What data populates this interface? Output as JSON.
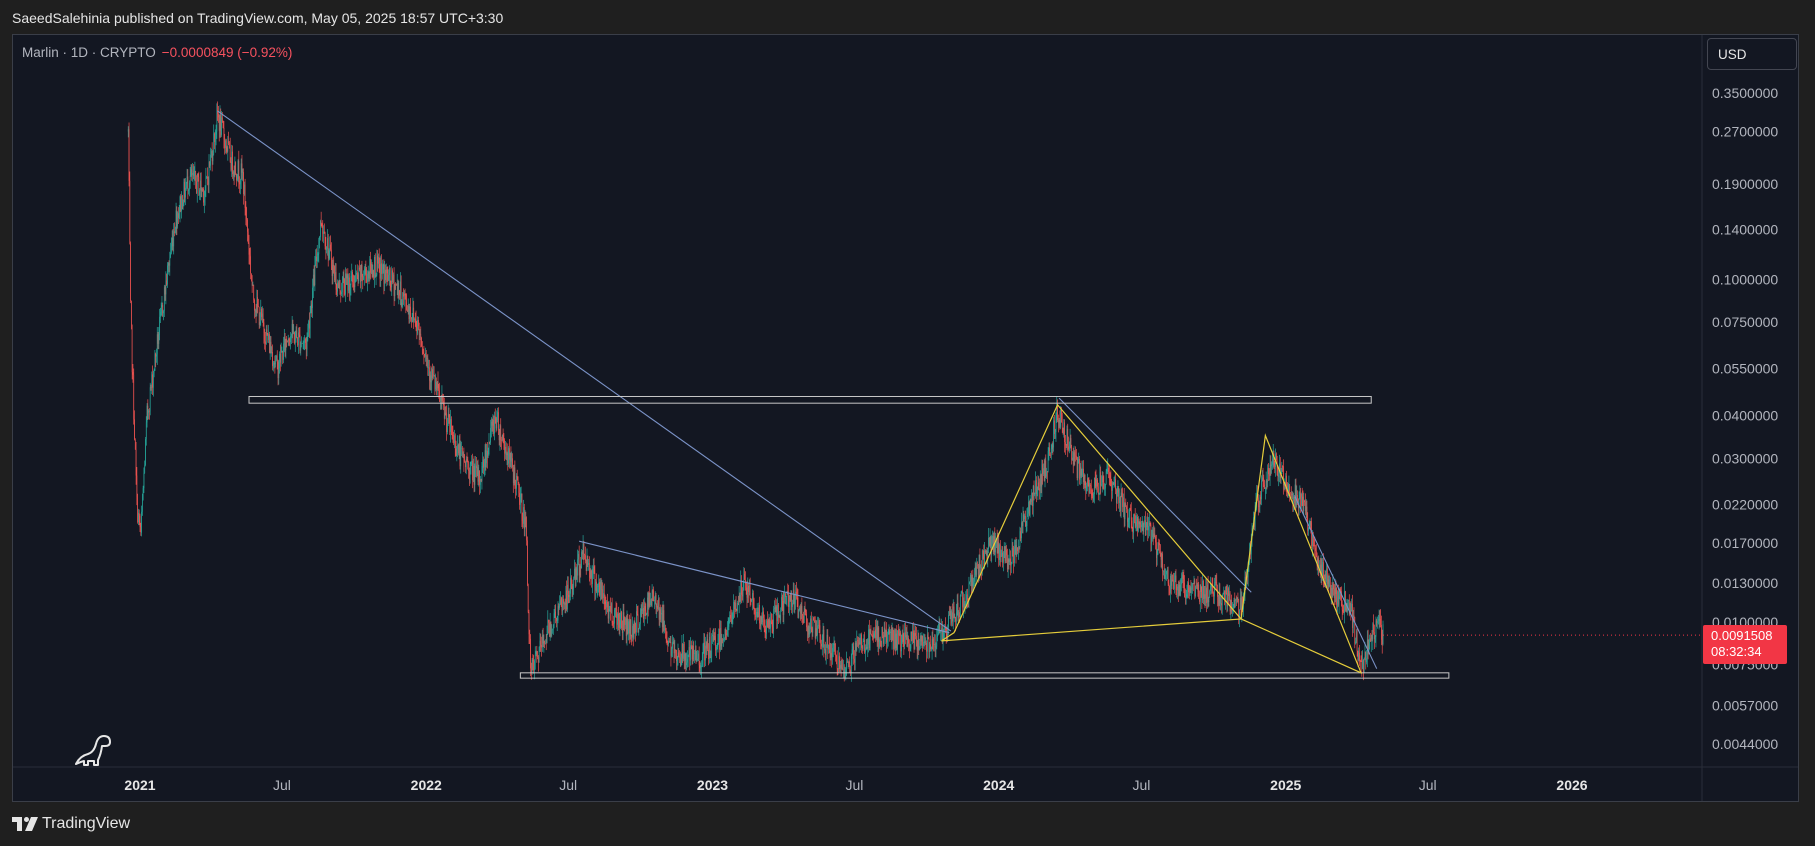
{
  "header": {
    "title": "SaeedSalehinia published on TradingView.com, May 05, 2025 18:57 UTC+3:30"
  },
  "legend": {
    "symbol": "Marlin · 1D · CRYPTO",
    "change": "−0.0000849 (−0.92%)"
  },
  "currency_button": "USD",
  "price_label": {
    "price": "0.0091508",
    "countdown": "08:32:34"
  },
  "footer": {
    "brand": "TradingView"
  },
  "colors": {
    "up": "#26a69a",
    "down": "#ef5350",
    "trendline": "#7b93c8",
    "pattern": "#e5cd3b",
    "box": "#c8c8c8",
    "background": "#131722",
    "price_tag": "#f23645"
  },
  "chart_data": {
    "type": "candlestick",
    "title": "Marlin · 1D · CRYPTO",
    "scale": "log",
    "ylim": [
      0.0038,
      0.42
    ],
    "xlim": [
      "2020-11-01",
      "2026-08-01"
    ],
    "y_ticks": [
      "0.3500000",
      "0.2700000",
      "0.1900000",
      "0.1400000",
      "0.1000000",
      "0.0750000",
      "0.0550000",
      "0.0400000",
      "0.0300000",
      "0.0220000",
      "0.0170000",
      "0.0130000",
      "0.0100000",
      "0.0075000",
      "0.0057000",
      "0.0044000"
    ],
    "x_ticks": [
      {
        "label": "2021",
        "date": "2021-01-01",
        "major": true
      },
      {
        "label": "Jul",
        "date": "2021-07-01",
        "major": false
      },
      {
        "label": "2022",
        "date": "2022-01-01",
        "major": true
      },
      {
        "label": "Jul",
        "date": "2022-07-01",
        "major": false
      },
      {
        "label": "2023",
        "date": "2023-01-01",
        "major": true
      },
      {
        "label": "Jul",
        "date": "2023-07-01",
        "major": false
      },
      {
        "label": "2024",
        "date": "2024-01-01",
        "major": true
      },
      {
        "label": "Jul",
        "date": "2024-07-01",
        "major": false
      },
      {
        "label": "2025",
        "date": "2025-01-01",
        "major": true
      },
      {
        "label": "Jul",
        "date": "2025-07-01",
        "major": false
      },
      {
        "label": "2026",
        "date": "2026-01-01",
        "major": true
      }
    ],
    "price_path": [
      [
        "2020-12-17",
        0.27
      ],
      [
        "2020-12-20",
        0.08
      ],
      [
        "2020-12-28",
        0.022
      ],
      [
        "2021-01-02",
        0.018
      ],
      [
        "2021-01-10",
        0.04
      ],
      [
        "2021-01-25",
        0.07
      ],
      [
        "2021-02-15",
        0.15
      ],
      [
        "2021-03-05",
        0.2
      ],
      [
        "2021-03-25",
        0.18
      ],
      [
        "2021-04-10",
        0.3
      ],
      [
        "2021-04-28",
        0.22
      ],
      [
        "2021-05-12",
        0.2
      ],
      [
        "2021-05-25",
        0.09
      ],
      [
        "2021-06-10",
        0.07
      ],
      [
        "2021-06-25",
        0.055
      ],
      [
        "2021-07-10",
        0.07
      ],
      [
        "2021-08-01",
        0.065
      ],
      [
        "2021-08-20",
        0.15
      ],
      [
        "2021-09-10",
        0.095
      ],
      [
        "2021-10-05",
        0.1
      ],
      [
        "2021-10-28",
        0.11
      ],
      [
        "2021-11-25",
        0.095
      ],
      [
        "2021-12-20",
        0.075
      ],
      [
        "2022-01-05",
        0.055
      ],
      [
        "2022-01-25",
        0.04
      ],
      [
        "2022-02-15",
        0.03
      ],
      [
        "2022-03-10",
        0.026
      ],
      [
        "2022-03-30",
        0.04
      ],
      [
        "2022-04-25",
        0.026
      ],
      [
        "2022-05-08",
        0.019
      ],
      [
        "2022-05-14",
        0.007
      ],
      [
        "2022-06-05",
        0.0095
      ],
      [
        "2022-07-01",
        0.012
      ],
      [
        "2022-07-20",
        0.016
      ],
      [
        "2022-08-20",
        0.011
      ],
      [
        "2022-09-20",
        0.0095
      ],
      [
        "2022-10-20",
        0.012
      ],
      [
        "2022-11-10",
        0.0082
      ],
      [
        "2022-12-15",
        0.0078
      ],
      [
        "2023-01-20",
        0.0095
      ],
      [
        "2023-02-10",
        0.013
      ],
      [
        "2023-03-10",
        0.0095
      ],
      [
        "2023-04-10",
        0.012
      ],
      [
        "2023-05-10",
        0.0095
      ],
      [
        "2023-06-10",
        0.0078
      ],
      [
        "2023-06-15",
        0.0068
      ],
      [
        "2023-07-05",
        0.0085
      ],
      [
        "2023-08-05",
        0.0092
      ],
      [
        "2023-09-05",
        0.0087
      ],
      [
        "2023-10-05",
        0.0088
      ],
      [
        "2023-10-25",
        0.0095
      ],
      [
        "2023-11-20",
        0.012
      ],
      [
        "2023-12-20",
        0.017
      ],
      [
        "2024-01-15",
        0.015
      ],
      [
        "2024-02-10",
        0.022
      ],
      [
        "2024-03-05",
        0.03
      ],
      [
        "2024-03-16",
        0.042
      ],
      [
        "2024-04-05",
        0.03
      ],
      [
        "2024-04-25",
        0.024
      ],
      [
        "2024-05-20",
        0.027
      ],
      [
        "2024-06-15",
        0.02
      ],
      [
        "2024-07-15",
        0.018
      ],
      [
        "2024-08-05",
        0.013
      ],
      [
        "2024-09-10",
        0.0125
      ],
      [
        "2024-10-10",
        0.012
      ],
      [
        "2024-11-05",
        0.011
      ],
      [
        "2024-11-25",
        0.022
      ],
      [
        "2024-12-15",
        0.03
      ],
      [
        "2025-01-05",
        0.025
      ],
      [
        "2025-01-25",
        0.022
      ],
      [
        "2025-02-10",
        0.015
      ],
      [
        "2025-03-05",
        0.012
      ],
      [
        "2025-03-25",
        0.011
      ],
      [
        "2025-04-07",
        0.0072
      ],
      [
        "2025-04-20",
        0.0092
      ],
      [
        "2025-04-28",
        0.0102
      ],
      [
        "2025-05-05",
        0.0091508
      ]
    ],
    "drawings": [
      {
        "kind": "trendline",
        "name": "long-downtrend",
        "color": "#7b93c8",
        "from": [
          "2021-04-10",
          0.31
        ],
        "to": [
          "2023-11-01",
          0.0094
        ]
      },
      {
        "kind": "trendline",
        "name": "2022-2023-downtrend",
        "color": "#7b93c8",
        "from": [
          "2022-07-15",
          0.0172
        ],
        "to": [
          "2023-10-30",
          0.0093
        ]
      },
      {
        "kind": "trendline",
        "name": "2024-downtrend",
        "color": "#7b93c8",
        "from": [
          "2024-03-18",
          0.045
        ],
        "to": [
          "2024-11-18",
          0.0122
        ]
      },
      {
        "kind": "trendline",
        "name": "2025-downtrend",
        "color": "#7b93c8",
        "from": [
          "2025-01-12",
          0.0234
        ],
        "to": [
          "2025-04-27",
          0.0073
        ]
      },
      {
        "kind": "range",
        "name": "upper-resistance-zone",
        "color": "#c8c8c8",
        "x0": "2021-05-20",
        "x1": "2025-04-20",
        "y0": 0.0455,
        "y1": 0.0435
      },
      {
        "kind": "range",
        "name": "lower-support-zone",
        "color": "#c8c8c8",
        "x0": "2022-05-01",
        "x1": "2025-07-28",
        "y0": 0.0071,
        "y1": 0.00685
      },
      {
        "kind": "polyline",
        "name": "harmonic-pattern",
        "color": "#e5cd3b",
        "points": [
          [
            "2023-10-20",
            0.0088
          ],
          [
            "2023-11-05",
            0.0093
          ],
          [
            "2024-03-16",
            0.043
          ],
          [
            "2024-11-05",
            0.0102
          ],
          [
            "2023-10-20",
            0.0088
          ]
        ]
      },
      {
        "kind": "polyline",
        "name": "harmonic-pattern-2",
        "color": "#e5cd3b",
        "points": [
          [
            "2024-11-05",
            0.0102
          ],
          [
            "2024-12-06",
            0.035
          ],
          [
            "2025-04-07",
            0.0071
          ],
          [
            "2024-11-05",
            0.0102
          ]
        ]
      }
    ]
  }
}
